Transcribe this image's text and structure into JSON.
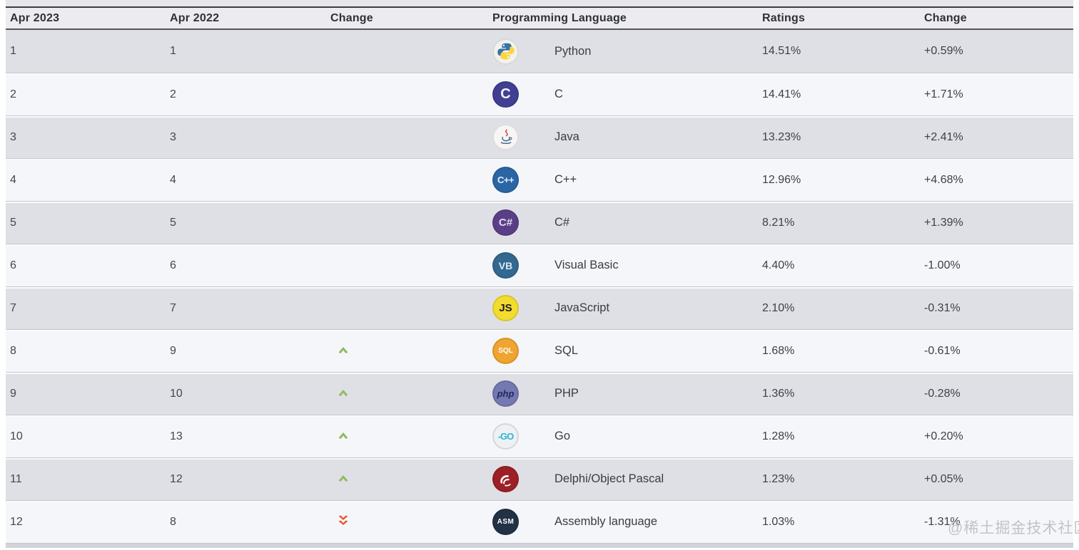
{
  "header": {
    "columns": [
      "Apr 2023",
      "Apr 2022",
      "Change",
      "Programming Language",
      "Ratings",
      "Change"
    ]
  },
  "rows": [
    {
      "rank_2023": "1",
      "rank_2022": "1",
      "position_change": "none",
      "language": "Python",
      "icon": "python-icon",
      "ratings": "14.51%",
      "ratings_change": "+0.59%"
    },
    {
      "rank_2023": "2",
      "rank_2022": "2",
      "position_change": "none",
      "language": "C",
      "icon": "c-icon",
      "ratings": "14.41%",
      "ratings_change": "+1.71%"
    },
    {
      "rank_2023": "3",
      "rank_2022": "3",
      "position_change": "none",
      "language": "Java",
      "icon": "java-icon",
      "ratings": "13.23%",
      "ratings_change": "+2.41%"
    },
    {
      "rank_2023": "4",
      "rank_2022": "4",
      "position_change": "none",
      "language": "C++",
      "icon": "cpp-icon",
      "ratings": "12.96%",
      "ratings_change": "+4.68%"
    },
    {
      "rank_2023": "5",
      "rank_2022": "5",
      "position_change": "none",
      "language": "C#",
      "icon": "csharp-icon",
      "ratings": "8.21%",
      "ratings_change": "+1.39%"
    },
    {
      "rank_2023": "6",
      "rank_2022": "6",
      "position_change": "none",
      "language": "Visual Basic",
      "icon": "vb-icon",
      "ratings": "4.40%",
      "ratings_change": "-1.00%"
    },
    {
      "rank_2023": "7",
      "rank_2022": "7",
      "position_change": "none",
      "language": "JavaScript",
      "icon": "js-icon",
      "ratings": "2.10%",
      "ratings_change": "-0.31%"
    },
    {
      "rank_2023": "8",
      "rank_2022": "9",
      "position_change": "up",
      "language": "SQL",
      "icon": "sql-icon",
      "ratings": "1.68%",
      "ratings_change": "-0.61%"
    },
    {
      "rank_2023": "9",
      "rank_2022": "10",
      "position_change": "up",
      "language": "PHP",
      "icon": "php-icon",
      "ratings": "1.36%",
      "ratings_change": "-0.28%"
    },
    {
      "rank_2023": "10",
      "rank_2022": "13",
      "position_change": "up",
      "language": "Go",
      "icon": "go-icon",
      "ratings": "1.28%",
      "ratings_change": "+0.20%"
    },
    {
      "rank_2023": "11",
      "rank_2022": "12",
      "position_change": "up",
      "language": "Delphi/Object Pascal",
      "icon": "delphi-icon",
      "ratings": "1.23%",
      "ratings_change": "+0.05%"
    },
    {
      "rank_2023": "12",
      "rank_2022": "8",
      "position_change": "down-double",
      "language": "Assembly language",
      "icon": "asm-icon",
      "ratings": "1.03%",
      "ratings_change": "-1.31%"
    }
  ],
  "icons": {
    "python-icon": {
      "bg": "#f2f2ec",
      "fg": "#3873a9",
      "label": ""
    },
    "c-icon": {
      "bg": "#413f92",
      "fg": "#f2f2f8",
      "label": "C"
    },
    "java-icon": {
      "bg": "#f7f6f4",
      "fg": "#4a6e94",
      "label": ""
    },
    "cpp-icon": {
      "bg": "#2a66a6",
      "fg": "#e9f1fa",
      "label": "C++"
    },
    "csharp-icon": {
      "bg": "#5b3f86",
      "fg": "#e4d9f6",
      "label": "C#"
    },
    "vb-icon": {
      "bg": "#33688f",
      "fg": "#d9e9f4",
      "label": "VB"
    },
    "js-icon": {
      "bg": "#f2dc30",
      "fg": "#1f1f1f",
      "label": "JS"
    },
    "sql-icon": {
      "bg": "#efa52f",
      "fg": "#ffffff",
      "label": "SQL"
    },
    "php-icon": {
      "bg": "#7579b2",
      "fg": "#23255c",
      "label": "php"
    },
    "go-icon": {
      "bg": "#edf1f3",
      "fg": "#29b6cf",
      "label": "-GO"
    },
    "delphi-icon": {
      "bg": "#9c2025",
      "fg": "#ffffff",
      "label": ""
    },
    "asm-icon": {
      "bg": "#223145",
      "fg": "#ffffff",
      "label": "ASM"
    }
  },
  "indicators": {
    "up_color": "#8dbd62",
    "down_color": "#ea572e"
  },
  "colors": {
    "row_gray": "#dfe0e5",
    "row_light": "#f5f6fa",
    "header_bg": "#ececf0",
    "header_text": "#2f3137"
  },
  "watermark": "@稀土掘金技术社区"
}
